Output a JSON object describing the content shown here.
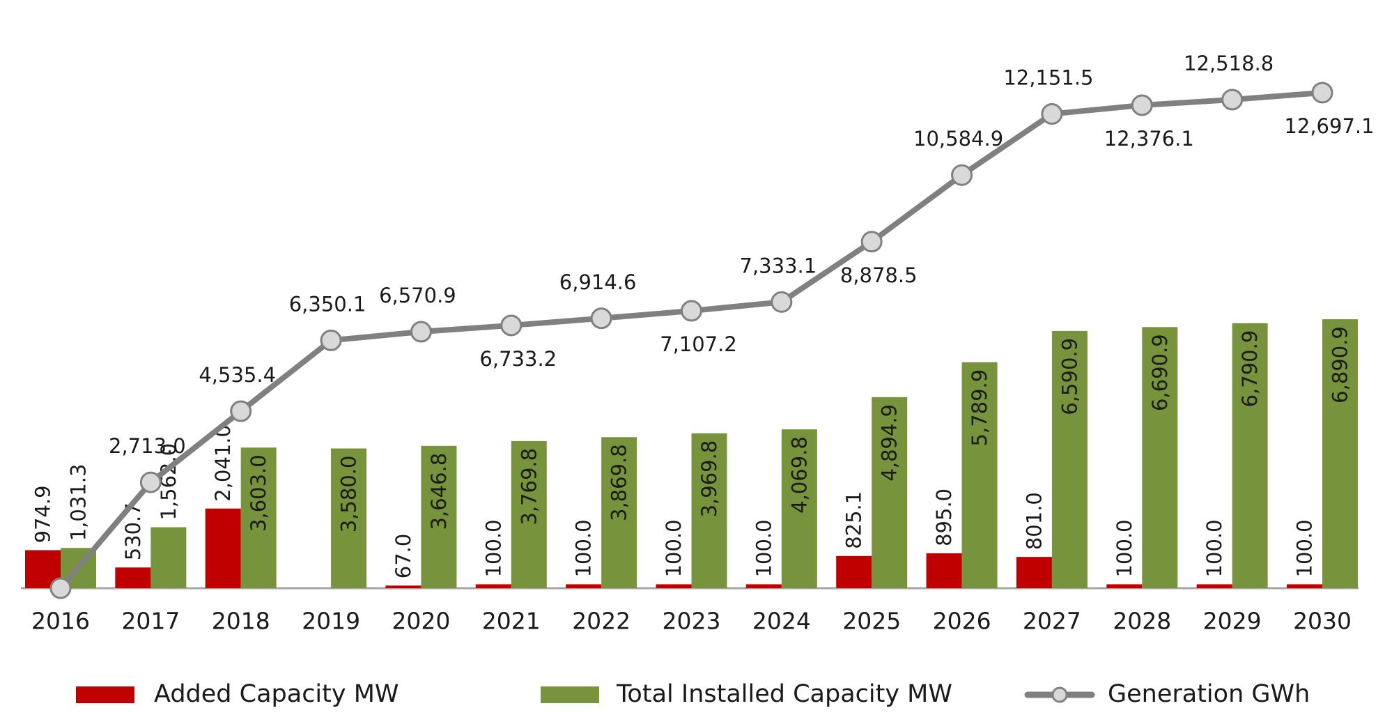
{
  "chart_data": {
    "type": "bar-line",
    "categories": [
      "2016",
      "2017",
      "2018",
      "2019",
      "2020",
      "2021",
      "2022",
      "2023",
      "2024",
      "2025",
      "2026",
      "2027",
      "2028",
      "2029",
      "2030"
    ],
    "series": [
      {
        "name": "Added Capacity MW",
        "type": "bar",
        "color": "#c00000",
        "values": [
          974.9,
          530.7,
          2041.0,
          null,
          67.0,
          100.0,
          100.0,
          100.0,
          100.0,
          825.1,
          895.0,
          801.0,
          100.0,
          100.0,
          100.0
        ],
        "value_labels": [
          "974.9",
          "530.7",
          "2,041.0",
          null,
          "67.0",
          "100.0",
          "100.0",
          "100.0",
          "100.0",
          "825.1",
          "895.0",
          "801.0",
          "100.0",
          "100.0",
          "100.0"
        ]
      },
      {
        "name": "Total Installed Capacity MW",
        "type": "bar",
        "color": "#77933c",
        "values": [
          1031.3,
          1562.0,
          3603.0,
          3580.0,
          3646.8,
          3769.8,
          3869.8,
          3969.8,
          4069.8,
          4894.9,
          5789.9,
          6590.9,
          6690.9,
          6790.9,
          6890.9
        ],
        "value_labels": [
          "1,031.3",
          "1,562.0",
          "3,603.0",
          "3,580.0",
          "3,646.8",
          "3,769.8",
          "3,869.8",
          "3,969.8",
          "4,069.8",
          "4,894.9",
          "5,789.9",
          "6,590.9",
          "6,690.9",
          "6,790.9",
          "6,890.9"
        ]
      },
      {
        "name": "Generation GWh",
        "type": "line",
        "color": "#808080",
        "values": [
          0,
          2713.0,
          4535.4,
          6350.1,
          6570.9,
          6733.2,
          6914.6,
          7107.2,
          7333.1,
          8878.5,
          10584.9,
          12151.5,
          12376.1,
          12518.8,
          12697.1
        ],
        "value_labels": [
          null,
          "2,713.0",
          "4,535.4",
          "6,350.1",
          "6,570.9",
          "6,733.2",
          "6,914.6",
          "7,107.2",
          "7,333.1",
          "8,878.5",
          "10,584.9",
          "12,151.5",
          "12,376.1",
          "12,518.8",
          "12,697.1"
        ]
      }
    ],
    "ylim": [
      0,
      15000
    ]
  }
}
